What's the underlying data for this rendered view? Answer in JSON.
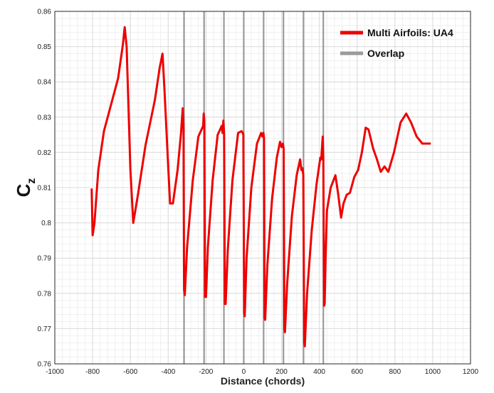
{
  "chart_data": {
    "type": "line",
    "title": "",
    "xlabel": "Distance (chords)",
    "ylabel_main": "C",
    "ylabel_sub": "z",
    "xlim": [
      -1000,
      1200
    ],
    "ylim": [
      0.76,
      0.86
    ],
    "x_ticks": [
      -1000,
      -800,
      -600,
      -400,
      -200,
      0,
      200,
      400,
      600,
      800,
      1000,
      1200
    ],
    "y_ticks": [
      0.76,
      0.77,
      0.78,
      0.79,
      0.8,
      0.81,
      0.82,
      0.83,
      0.84,
      0.85,
      0.86
    ],
    "x_tick_labels": [
      "-1000",
      "-800",
      "-600",
      "-400",
      "-200",
      "0",
      "200",
      "400",
      "600",
      "800",
      "1000",
      "1200"
    ],
    "y_tick_labels": [
      "0.76",
      "0.77",
      "0.78",
      "0.79",
      "0.8",
      "0.81",
      "0.82",
      "0.83",
      "0.84",
      "0.85",
      "0.86"
    ],
    "grid": true,
    "legend_position": "top-right",
    "series": [
      {
        "name": "Multi Airfoils: UA4",
        "color": "#ee0000",
        "points": [
          [
            -805,
            0.8095
          ],
          [
            -800,
            0.7965
          ],
          [
            -790,
            0.8
          ],
          [
            -770,
            0.815
          ],
          [
            -740,
            0.826
          ],
          [
            -700,
            0.834
          ],
          [
            -665,
            0.841
          ],
          [
            -640,
            0.8505
          ],
          [
            -630,
            0.8555
          ],
          [
            -620,
            0.85
          ],
          [
            -600,
            0.815
          ],
          [
            -585,
            0.8
          ],
          [
            -560,
            0.808
          ],
          [
            -520,
            0.822
          ],
          [
            -470,
            0.835
          ],
          [
            -445,
            0.844
          ],
          [
            -430,
            0.848
          ],
          [
            -420,
            0.838
          ],
          [
            -400,
            0.816
          ],
          [
            -390,
            0.8055
          ],
          [
            -375,
            0.8055
          ],
          [
            -350,
            0.815
          ],
          [
            -332,
            0.8255
          ],
          [
            -323,
            0.8325
          ],
          [
            -319,
            0.827
          ],
          [
            -316,
            0.781
          ],
          [
            -312,
            0.7795
          ],
          [
            -300,
            0.793
          ],
          [
            -270,
            0.812
          ],
          [
            -240,
            0.8245
          ],
          [
            -215,
            0.8275
          ],
          [
            -212,
            0.831
          ],
          [
            -209,
            0.829
          ],
          [
            -205,
            0.779
          ],
          [
            -200,
            0.779
          ],
          [
            -190,
            0.793
          ],
          [
            -165,
            0.812
          ],
          [
            -138,
            0.825
          ],
          [
            -125,
            0.8265
          ],
          [
            -117,
            0.8275
          ],
          [
            -112,
            0.8255
          ],
          [
            -108,
            0.829
          ],
          [
            -104,
            0.8255
          ],
          [
            -100,
            0.777
          ],
          [
            -96,
            0.777
          ],
          [
            -85,
            0.792
          ],
          [
            -60,
            0.812
          ],
          [
            -30,
            0.8255
          ],
          [
            -12,
            0.826
          ],
          [
            -5,
            0.8255
          ],
          [
            -2,
            0.825
          ],
          [
            2,
            0.7745
          ],
          [
            5,
            0.7735
          ],
          [
            15,
            0.79
          ],
          [
            40,
            0.81
          ],
          [
            70,
            0.8225
          ],
          [
            92,
            0.8255
          ],
          [
            98,
            0.8245
          ],
          [
            104,
            0.8255
          ],
          [
            107,
            0.824
          ],
          [
            110,
            0.773
          ],
          [
            113,
            0.7725
          ],
          [
            125,
            0.788
          ],
          [
            150,
            0.807
          ],
          [
            175,
            0.8185
          ],
          [
            192,
            0.823
          ],
          [
            200,
            0.8215
          ],
          [
            207,
            0.8225
          ],
          [
            211,
            0.821
          ],
          [
            215,
            0.77
          ],
          [
            218,
            0.769
          ],
          [
            230,
            0.783
          ],
          [
            255,
            0.802
          ],
          [
            280,
            0.8135
          ],
          [
            298,
            0.818
          ],
          [
            305,
            0.815
          ],
          [
            311,
            0.8155
          ],
          [
            315,
            0.8135
          ],
          [
            320,
            0.766
          ],
          [
            323,
            0.765
          ],
          [
            335,
            0.78
          ],
          [
            360,
            0.798
          ],
          [
            385,
            0.811
          ],
          [
            405,
            0.8185
          ],
          [
            410,
            0.818
          ],
          [
            418,
            0.8245
          ],
          [
            421,
            0.8185
          ],
          [
            425,
            0.7765
          ],
          [
            428,
            0.777
          ],
          [
            433,
            0.79
          ],
          [
            440,
            0.8035
          ],
          [
            460,
            0.81
          ],
          [
            485,
            0.8135
          ],
          [
            500,
            0.808
          ],
          [
            515,
            0.8015
          ],
          [
            528,
            0.8055
          ],
          [
            545,
            0.808
          ],
          [
            562,
            0.8085
          ],
          [
            585,
            0.813
          ],
          [
            605,
            0.815
          ],
          [
            625,
            0.82
          ],
          [
            645,
            0.827
          ],
          [
            660,
            0.8265
          ],
          [
            685,
            0.821
          ],
          [
            705,
            0.818
          ],
          [
            725,
            0.8145
          ],
          [
            745,
            0.816
          ],
          [
            765,
            0.8145
          ],
          [
            795,
            0.82
          ],
          [
            830,
            0.8285
          ],
          [
            860,
            0.831
          ],
          [
            885,
            0.8285
          ],
          [
            915,
            0.8245
          ],
          [
            945,
            0.8225
          ],
          [
            985,
            0.8225
          ]
        ]
      },
      {
        "name": "Overlap",
        "color": "#9a9a9a",
        "x_positions": [
          -316,
          -210,
          -105,
          0,
          105,
          210,
          316,
          421
        ]
      }
    ]
  }
}
